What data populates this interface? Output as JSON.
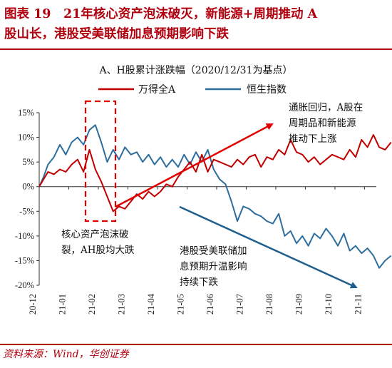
{
  "figure": {
    "title_line1": "图表 19　21年核心资产泡沫破灭，新能源+周期推动 A",
    "title_line2": "股山长，港股受美联储加息预期影响下跌",
    "source": "资料来源：Wind，华创证券"
  },
  "chart_data": {
    "type": "line",
    "title": "A、H股累计涨跌幅（2020/12/31为基点）",
    "xlabel": "",
    "ylabel": "",
    "ylim": [
      -20,
      15
    ],
    "yticks": [
      "15%",
      "10%",
      "5%",
      "0%",
      "-5%",
      "-10%",
      "-15%",
      "-20%"
    ],
    "ytick_values": [
      15,
      10,
      5,
      0,
      -5,
      -10,
      -15,
      -20
    ],
    "xticks": [
      "20-12",
      "21-01",
      "21-02",
      "21-03",
      "21-04",
      "21-05",
      "21-06",
      "21-07",
      "21-08",
      "21-09",
      "21-10",
      "21-11"
    ],
    "grid": false,
    "legend_position": "top-center",
    "series": [
      {
        "name": "万得全A",
        "color": "#c00000",
        "x": [
          0,
          0.15,
          0.3,
          0.5,
          0.7,
          0.9,
          1.1,
          1.3,
          1.5,
          1.7,
          1.9,
          2.1,
          2.3,
          2.5,
          2.7,
          2.9,
          3.1,
          3.3,
          3.5,
          3.7,
          3.9,
          4.1,
          4.3,
          4.5,
          4.7,
          4.9,
          5.1,
          5.3,
          5.5,
          5.7,
          5.9,
          6.1,
          6.3,
          6.5,
          6.7,
          6.9,
          7.1,
          7.3,
          7.5,
          7.7,
          7.9,
          8.1,
          8.3,
          8.5,
          8.7,
          8.9,
          9.1,
          9.3,
          9.5,
          9.7,
          9.9,
          10.1,
          10.3,
          10.5,
          10.7,
          10.9,
          11.1,
          11.3,
          11.5,
          11.7,
          11.9
        ],
        "y": [
          0,
          1.5,
          3,
          2.5,
          3.5,
          3,
          4.5,
          5.5,
          3,
          7.5,
          3.5,
          1,
          -2,
          -5,
          -4,
          -4.5,
          -3,
          -1.5,
          -2.5,
          -1,
          -2,
          -1,
          0.5,
          0,
          2,
          3.5,
          5,
          3,
          6.5,
          3,
          5.5,
          5,
          4.5,
          4,
          5.5,
          4.5,
          6,
          6.5,
          4,
          6,
          5.5,
          7.5,
          6.5,
          9.5,
          7,
          6.5,
          5,
          6,
          4.5,
          5.5,
          6.5,
          6,
          5.5,
          7.5,
          6,
          9.5,
          8,
          10.5,
          8,
          7.5,
          9
        ]
      },
      {
        "name": "恒生指数",
        "color": "#2e6e9e",
        "x": [
          0,
          0.15,
          0.3,
          0.5,
          0.7,
          0.9,
          1.1,
          1.3,
          1.5,
          1.7,
          1.9,
          2.1,
          2.3,
          2.5,
          2.7,
          2.9,
          3.1,
          3.3,
          3.5,
          3.7,
          3.9,
          4.1,
          4.3,
          4.5,
          4.7,
          4.9,
          5.1,
          5.3,
          5.5,
          5.7,
          5.9,
          6.1,
          6.3,
          6.5,
          6.7,
          6.9,
          7.1,
          7.3,
          7.5,
          7.7,
          7.9,
          8.1,
          8.3,
          8.5,
          8.7,
          8.9,
          9.1,
          9.3,
          9.5,
          9.7,
          9.9,
          10.1,
          10.3,
          10.5,
          10.7,
          10.9,
          11.1,
          11.3,
          11.5,
          11.7,
          11.9
        ],
        "y": [
          0,
          2,
          4.5,
          6,
          8.5,
          6.5,
          9,
          10,
          8.5,
          11.5,
          12.5,
          9,
          5,
          7.5,
          5.5,
          8,
          6.5,
          7,
          5,
          6.5,
          4.5,
          6,
          4,
          5.5,
          4,
          6.5,
          4.5,
          7,
          5,
          7.5,
          3.5,
          1.5,
          0.5,
          -3,
          -7,
          -4,
          -4.5,
          -5.5,
          -6,
          -7,
          -7.5,
          -5.5,
          -10,
          -9,
          -11.5,
          -10,
          -12,
          -9.5,
          -10.5,
          -8.5,
          -10,
          -12,
          -9.5,
          -13,
          -12,
          -13.5,
          -12.5,
          -14,
          -16.5,
          -15,
          -14
        ]
      }
    ],
    "annotations": {
      "box_label": [
        "核心资产泡沫破",
        "裂，AH股均大跌"
      ],
      "red_note": [
        "通胀回归，A股在",
        "周期品和新能源",
        "推动下上涨"
      ],
      "blue_note": [
        "港股受美联储加",
        "息预期升温影响",
        "持续下跌"
      ]
    }
  }
}
